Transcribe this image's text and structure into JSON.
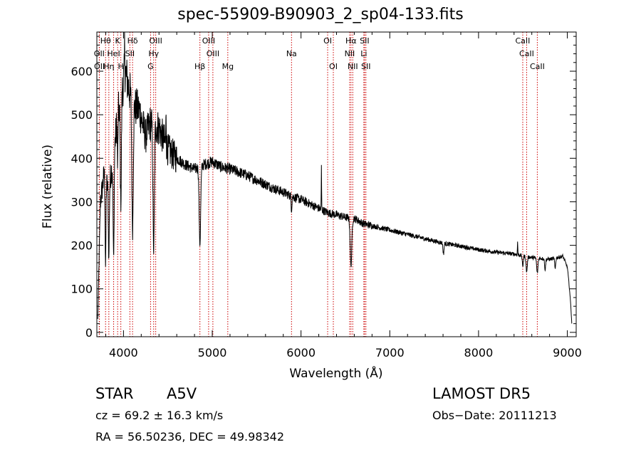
{
  "chart_data": {
    "type": "line",
    "title": "spec-55909-B90903_2_sp04-133.fits",
    "xlabel": "Wavelength (Å)",
    "ylabel": "Flux (relative)",
    "xlim": [
      3700,
      9100
    ],
    "ylim": [
      -10,
      690
    ],
    "xticks": [
      4000,
      5000,
      6000,
      7000,
      8000,
      9000
    ],
    "yticks": [
      0,
      100,
      200,
      300,
      400,
      500,
      600
    ],
    "grid": false,
    "line_color": "#000000",
    "marker_color": "#cc0000",
    "continuum": [
      [
        3710,
        30
      ],
      [
        3740,
        300
      ],
      [
        3780,
        360
      ],
      [
        3830,
        330
      ],
      [
        3880,
        390
      ],
      [
        3930,
        490
      ],
      [
        3970,
        540
      ],
      [
        4020,
        600
      ],
      [
        4060,
        560
      ],
      [
        4120,
        520
      ],
      [
        4180,
        510
      ],
      [
        4250,
        450
      ],
      [
        4300,
        480
      ],
      [
        4400,
        470
      ],
      [
        4500,
        420
      ],
      [
        4600,
        400
      ],
      [
        4700,
        385
      ],
      [
        4800,
        375
      ],
      [
        4900,
        385
      ],
      [
        5000,
        392
      ],
      [
        5100,
        380
      ],
      [
        5200,
        375
      ],
      [
        5300,
        368
      ],
      [
        5400,
        360
      ],
      [
        5500,
        350
      ],
      [
        5600,
        340
      ],
      [
        5700,
        330
      ],
      [
        5800,
        322
      ],
      [
        5900,
        312
      ],
      [
        6000,
        305
      ],
      [
        6100,
        295
      ],
      [
        6200,
        285
      ],
      [
        6300,
        275
      ],
      [
        6400,
        270
      ],
      [
        6500,
        264
      ],
      [
        6600,
        262
      ],
      [
        6700,
        250
      ],
      [
        6800,
        245
      ],
      [
        6900,
        240
      ],
      [
        7000,
        235
      ],
      [
        7200,
        225
      ],
      [
        7400,
        215
      ],
      [
        7600,
        205
      ],
      [
        7800,
        198
      ],
      [
        8000,
        190
      ],
      [
        8200,
        184
      ],
      [
        8400,
        180
      ],
      [
        8600,
        172
      ],
      [
        8800,
        168
      ],
      [
        8950,
        175
      ],
      [
        9000,
        150
      ],
      [
        9020,
        110
      ],
      [
        9040,
        60
      ],
      [
        9050,
        20
      ]
    ],
    "absorptions": [
      {
        "x": 3798,
        "depth": 200,
        "width": 6
      },
      {
        "x": 3835,
        "depth": 170,
        "width": 7
      },
      {
        "x": 3889,
        "depth": 240,
        "width": 8
      },
      {
        "x": 3934,
        "depth": 120,
        "width": 5
      },
      {
        "x": 3970,
        "depth": 240,
        "width": 9
      },
      {
        "x": 4102,
        "depth": 300,
        "width": 11
      },
      {
        "x": 4340,
        "depth": 290,
        "width": 11
      },
      {
        "x": 4861,
        "depth": 180,
        "width": 12
      },
      {
        "x": 5893,
        "depth": 30,
        "width": 6
      },
      {
        "x": 6563,
        "depth": 110,
        "width": 13
      },
      {
        "x": 7605,
        "depth": 25,
        "width": 8
      },
      {
        "x": 8498,
        "depth": 25,
        "width": 8
      },
      {
        "x": 8542,
        "depth": 35,
        "width": 10
      },
      {
        "x": 8662,
        "depth": 35,
        "width": 10
      },
      {
        "x": 8750,
        "depth": 25,
        "width": 8
      },
      {
        "x": 8863,
        "depth": 25,
        "width": 8
      }
    ],
    "spikes": [
      {
        "x": 4013,
        "height": 80
      },
      {
        "x": 4480,
        "height": 90
      },
      {
        "x": 6230,
        "height": 95
      },
      {
        "x": 8440,
        "height": 30
      }
    ],
    "lines": [
      {
        "label": "Hθ",
        "x": 3798,
        "row": 0
      },
      {
        "label": "K",
        "x": 3934,
        "row": 0
      },
      {
        "label": "Hδ",
        "x": 4102,
        "row": 0
      },
      {
        "label": "OIII",
        "x": 4363,
        "row": 0
      },
      {
        "label": "OIII",
        "x": 4959,
        "row": 0
      },
      {
        "label": "OI",
        "x": 6300,
        "row": 0
      },
      {
        "label": "Hα",
        "x": 6563,
        "row": 0
      },
      {
        "label": "SII",
        "x": 6716,
        "row": 0
      },
      {
        "label": "CaII",
        "x": 8498,
        "row": 0
      },
      {
        "label": "OII",
        "x": 3727,
        "row": 1
      },
      {
        "label": "HeI",
        "x": 3889,
        "row": 1
      },
      {
        "label": "SII",
        "x": 4072,
        "row": 1
      },
      {
        "label": "Hγ",
        "x": 4340,
        "row": 1
      },
      {
        "label": "OIII",
        "x": 5007,
        "row": 1
      },
      {
        "label": "Na",
        "x": 5893,
        "row": 1
      },
      {
        "label": "NII",
        "x": 6548,
        "row": 1
      },
      {
        "label": "Li",
        "x": 6708,
        "row": 1
      },
      {
        "label": "CaII",
        "x": 8542,
        "row": 1
      },
      {
        "label": "OII",
        "x": 3729,
        "row": 2
      },
      {
        "label": "Hη",
        "x": 3835,
        "row": 2
      },
      {
        "label": "H",
        "x": 3970,
        "row": 2
      },
      {
        "label": "G",
        "x": 4305,
        "row": 2
      },
      {
        "label": "Hβ",
        "x": 4861,
        "row": 2
      },
      {
        "label": "Mg",
        "x": 5175,
        "row": 2
      },
      {
        "label": "OI",
        "x": 6364,
        "row": 2
      },
      {
        "label": "NII",
        "x": 6583,
        "row": 2
      },
      {
        "label": "SII",
        "x": 6731,
        "row": 2
      },
      {
        "label": "CaII",
        "x": 8662,
        "row": 2
      }
    ]
  },
  "info": {
    "object_type": "STAR",
    "subclass": "A5V",
    "survey": "LAMOST DR5",
    "cz": "cz = 69.2 ± 16.3 km/s",
    "obs_date": "Obs−Date: 20111213",
    "coords": "RA =  56.50236, DEC =  49.98342"
  }
}
